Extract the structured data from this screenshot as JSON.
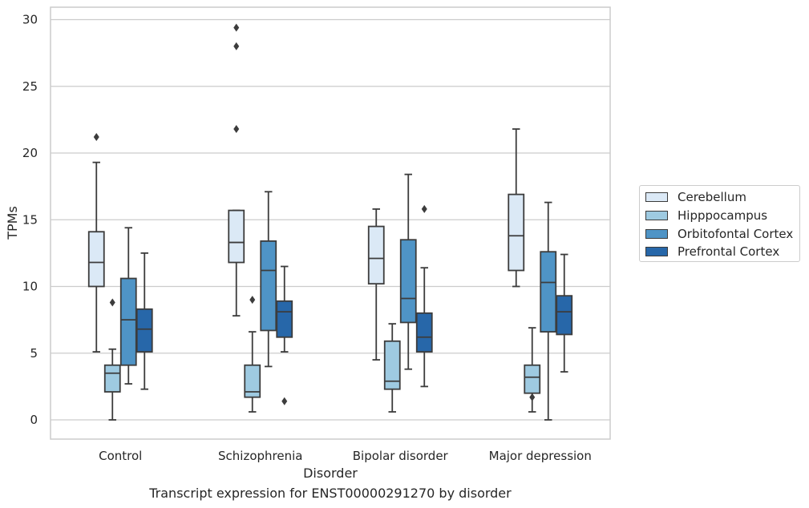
{
  "caption": "Transcript expression for ENST00000291270 by disorder",
  "chart_data": {
    "type": "box",
    "xlabel": "Disorder",
    "ylabel": "TPMs",
    "ylim": [
      -1.4,
      31
    ],
    "yticks": [
      0,
      5,
      10,
      15,
      20,
      25,
      30
    ],
    "grid": true,
    "legend_position": "right",
    "categories": [
      "Control",
      "Schizophrenia",
      "Bipolar disorder",
      "Major depression"
    ],
    "series": [
      {
        "name": "Cerebellum",
        "color": "#dbe9f6",
        "boxes": [
          {
            "whislo": 5.1,
            "q1": 10.0,
            "med": 11.8,
            "q3": 14.1,
            "whishi": 19.3,
            "fliers": [
              21.2
            ]
          },
          {
            "whislo": 7.8,
            "q1": 11.8,
            "med": 13.3,
            "q3": 15.7,
            "whishi": 15.7,
            "fliers": [
              21.8,
              28.0,
              29.4
            ]
          },
          {
            "whislo": 4.5,
            "q1": 10.2,
            "med": 12.1,
            "q3": 14.5,
            "whishi": 15.8,
            "fliers": []
          },
          {
            "whislo": 10.0,
            "q1": 11.2,
            "med": 13.8,
            "q3": 16.9,
            "whishi": 21.8,
            "fliers": []
          }
        ]
      },
      {
        "name": "Hipppocampus",
        "color": "#9ecae1",
        "boxes": [
          {
            "whislo": 0.0,
            "q1": 2.1,
            "med": 3.5,
            "q3": 4.1,
            "whishi": 5.3,
            "fliers": [
              8.8
            ]
          },
          {
            "whislo": 0.6,
            "q1": 1.7,
            "med": 2.1,
            "q3": 4.1,
            "whishi": 6.6,
            "fliers": [
              9.0
            ]
          },
          {
            "whislo": 0.6,
            "q1": 2.3,
            "med": 2.9,
            "q3": 5.9,
            "whishi": 7.2,
            "fliers": []
          },
          {
            "whislo": 0.6,
            "q1": 2.0,
            "med": 3.2,
            "q3": 4.1,
            "whishi": 6.9,
            "fliers": [
              1.7
            ]
          }
        ]
      },
      {
        "name": "Orbitofontal Cortex",
        "color": "#4f94c6",
        "boxes": [
          {
            "whislo": 2.7,
            "q1": 4.1,
            "med": 7.5,
            "q3": 10.6,
            "whishi": 14.4,
            "fliers": []
          },
          {
            "whislo": 4.0,
            "q1": 6.7,
            "med": 11.2,
            "q3": 13.4,
            "whishi": 17.1,
            "fliers": []
          },
          {
            "whislo": 3.8,
            "q1": 7.3,
            "med": 9.1,
            "q3": 13.5,
            "whishi": 18.4,
            "fliers": []
          },
          {
            "whislo": 0.0,
            "q1": 6.6,
            "med": 10.3,
            "q3": 12.6,
            "whishi": 16.3,
            "fliers": []
          }
        ]
      },
      {
        "name": "Prefrontal Cortex",
        "color": "#2767a9",
        "boxes": [
          {
            "whislo": 2.3,
            "q1": 5.1,
            "med": 6.8,
            "q3": 8.3,
            "whishi": 12.5,
            "fliers": []
          },
          {
            "whislo": 5.1,
            "q1": 6.2,
            "med": 8.1,
            "q3": 8.9,
            "whishi": 11.5,
            "fliers": [
              1.4
            ]
          },
          {
            "whislo": 2.5,
            "q1": 5.1,
            "med": 6.2,
            "q3": 8.0,
            "whishi": 11.4,
            "fliers": [
              15.8
            ]
          },
          {
            "whislo": 3.6,
            "q1": 6.4,
            "med": 8.1,
            "q3": 9.3,
            "whishi": 12.4,
            "fliers": []
          }
        ]
      }
    ]
  }
}
